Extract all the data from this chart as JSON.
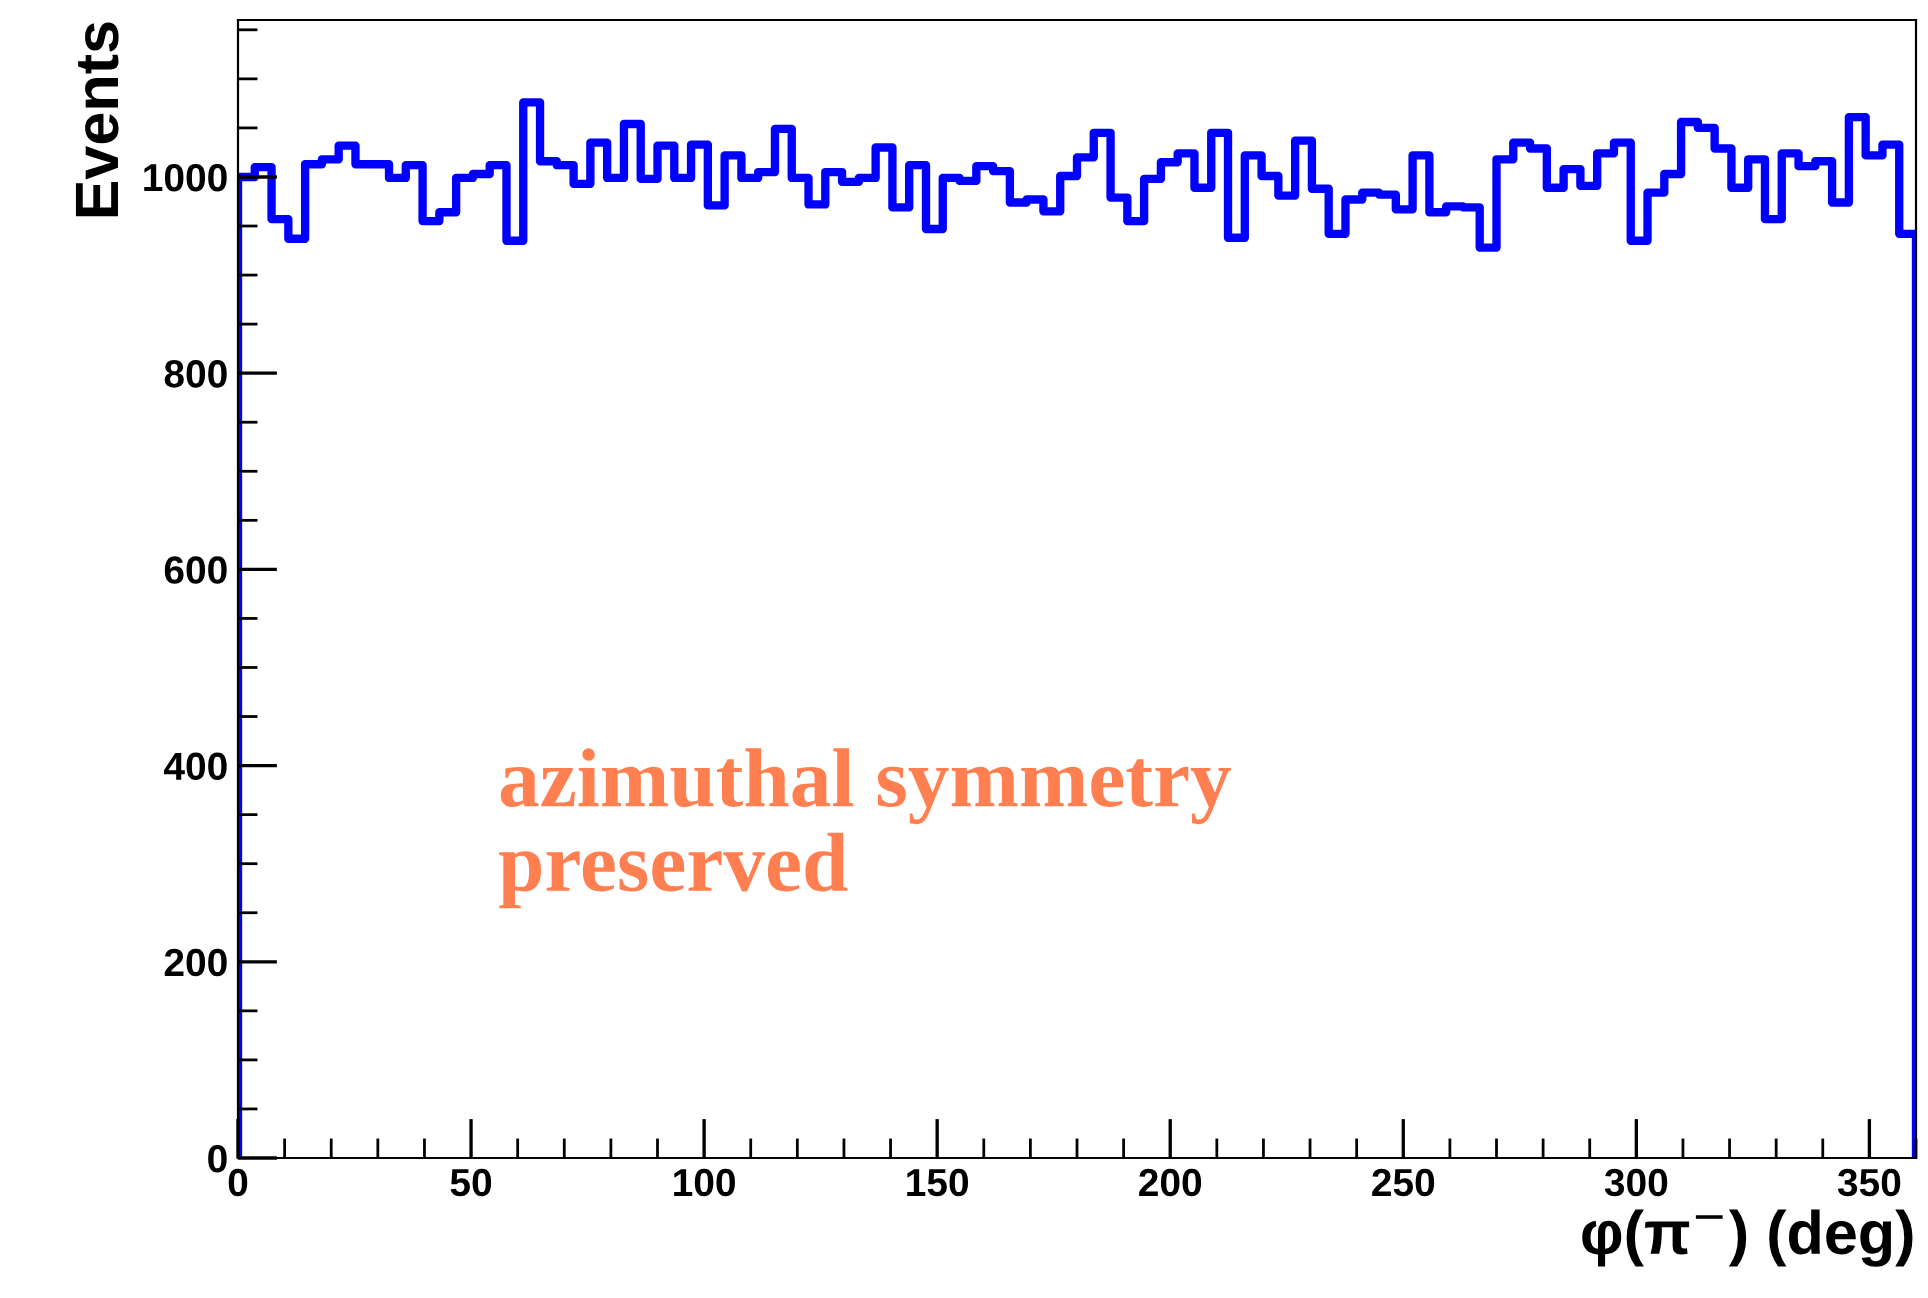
{
  "chart_data": {
    "type": "histogram",
    "xlabel": "φ(π$^{−}$) (deg)",
    "ylabel": "Events",
    "annotations": [
      "azimuthal symmetry\npreserved"
    ],
    "bins": [
      0,
      3.6,
      7.2,
      10.8,
      14.4,
      18,
      21.6,
      25.2,
      28.8,
      32.4,
      36,
      39.6,
      43.2,
      46.8,
      50.4,
      54,
      57.6,
      61.2,
      64.8,
      68.4,
      72,
      75.6,
      79.2,
      82.8,
      86.4,
      90,
      93.6,
      97.2,
      100.8,
      104.4,
      108,
      111.6,
      115.2,
      118.8,
      122.4,
      126,
      129.6,
      133.2,
      136.8,
      140.4,
      144,
      147.6,
      151.2,
      154.8,
      158.4,
      162,
      165.6,
      169.2,
      172.8,
      176.4,
      180,
      183.6,
      187.2,
      190.8,
      194.4,
      198,
      201.6,
      205.2,
      208.8,
      212.4,
      216,
      219.6,
      223.2,
      226.8,
      230.4,
      234,
      237.6,
      241.2,
      244.8,
      248.4,
      252,
      255.6,
      259.2,
      262.8,
      266.4,
      270,
      273.6,
      277.2,
      280.8,
      284.4,
      288,
      291.6,
      295.2,
      298.8,
      302.4,
      306,
      309.6,
      313.2,
      316.8,
      320.4,
      324,
      327.6,
      331.2,
      334.8,
      338.4,
      342,
      345.6,
      349.2,
      352.8,
      356.4,
      360
    ],
    "values": [
      1000,
      1010,
      957,
      937,
      1013,
      1018,
      1032,
      1013,
      1013,
      999,
      1012,
      955,
      964,
      999,
      1003,
      1012,
      935,
      1076,
      1016,
      1012,
      993,
      1035,
      999,
      1054,
      998,
      1032,
      999,
      1033,
      971,
      1022,
      999,
      1005,
      1049,
      999,
      972,
      1005,
      995,
      999,
      1030,
      969,
      1012,
      947,
      999,
      996,
      1011,
      1006,
      974,
      977,
      965,
      1001,
      1020,
      1045,
      979,
      955,
      998,
      1015,
      1024,
      989,
      1045,
      938,
      1022,
      1001,
      981,
      1037,
      988,
      942,
      977,
      984,
      982,
      967,
      1022,
      964,
      970,
      969,
      928,
      1018,
      1035,
      1029,
      989,
      1008,
      991,
      1024,
      1035,
      935,
      984,
      1003,
      1056,
      1050,
      1029,
      989,
      1018,
      957,
      1024,
      1011,
      1016,
      974,
      1061,
      1022,
      1033,
      942
    ],
    "color": "#0000ff",
    "xlim": [
      0,
      360
    ],
    "ylim": [
      0,
      1160
    ],
    "xticks": [
      0,
      50,
      100,
      150,
      200,
      250,
      300,
      350
    ],
    "yticks": [
      0,
      200,
      400,
      600,
      800,
      1000
    ],
    "grid": false,
    "legend": false
  }
}
